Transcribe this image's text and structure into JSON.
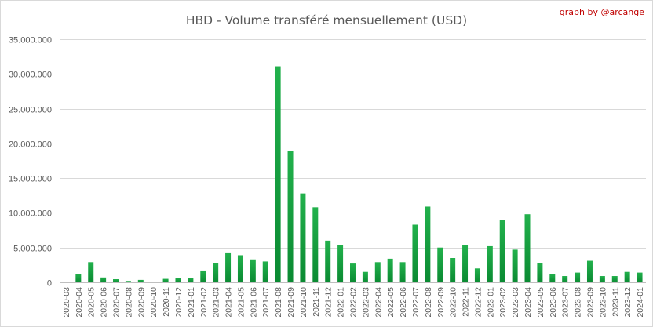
{
  "chart_data": {
    "type": "bar",
    "title": "HBD - Volume transféré mensuellement (USD)",
    "credit": "graph by @arcange",
    "xlabel": "",
    "ylabel": "",
    "ylim": [
      0,
      35000000
    ],
    "y_tick_values": [
      0,
      5000000,
      10000000,
      15000000,
      20000000,
      25000000,
      30000000,
      35000000
    ],
    "y_tick_labels": [
      "0",
      "5.000.000",
      "10.000.000",
      "15.000.000",
      "20.000.000",
      "25.000.000",
      "30.000.000",
      "35.000.000"
    ],
    "grid": true,
    "legend": "none",
    "bar_color_top": "#22b14c",
    "bar_color_bottom": "#0a8a32",
    "categories": [
      "2020-03",
      "2020-04",
      "2020-05",
      "2020-06",
      "2020-07",
      "2020-08",
      "2020-09",
      "2020-10",
      "2020-11",
      "2020-12",
      "2021-01",
      "2021-02",
      "2021-03",
      "2021-04",
      "2021-05",
      "2021-06",
      "2021-07",
      "2021-08",
      "2021-09",
      "2021-10",
      "2021-11",
      "2021-12",
      "2022-01",
      "2022-02",
      "2022-03",
      "2022-04",
      "2022-05",
      "2022-06",
      "2022-07",
      "2022-08",
      "2022-09",
      "2022-10",
      "2022-11",
      "2022-12",
      "2023-01",
      "2023-02",
      "2023-03",
      "2023-04",
      "2023-05",
      "2023-06",
      "2023-07",
      "2023-08",
      "2023-09",
      "2023-10",
      "2023-11",
      "2023-12",
      "2024-01"
    ],
    "values": [
      0,
      1200000,
      2900000,
      700000,
      450000,
      200000,
      350000,
      50000,
      500000,
      600000,
      600000,
      1700000,
      2800000,
      4300000,
      3900000,
      3300000,
      3000000,
      31100000,
      18900000,
      12800000,
      10800000,
      6000000,
      5400000,
      2700000,
      1500000,
      2900000,
      3400000,
      2900000,
      8300000,
      10900000,
      5000000,
      3500000,
      5400000,
      2000000,
      5200000,
      9000000,
      4700000,
      9800000,
      2800000,
      1200000,
      900000,
      1400000,
      3100000,
      900000,
      900000,
      1500000,
      1400000
    ]
  }
}
